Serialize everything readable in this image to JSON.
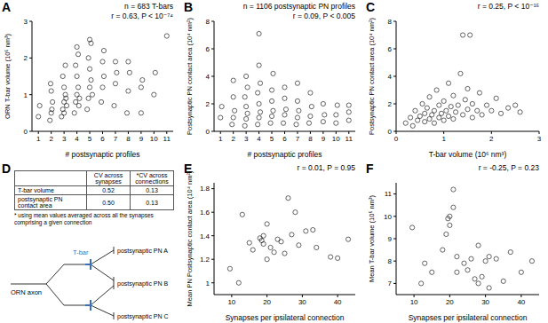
{
  "chart_data": [
    {
      "panel": "A",
      "type": "scatter",
      "annotations": [
        "n = 683 T-bars",
        "r = 0.63, P < 10⁻⁷⁴"
      ],
      "x_label": "# postsynaptic profiles",
      "y_label": "ORN T-bar volume (10⁶ nm³)",
      "color": "#000000",
      "marker": "open_circle",
      "x": [
        1,
        1.1,
        1.9,
        2.0,
        2.1,
        2.0,
        1.95,
        2.05,
        2.8,
        2.9,
        3.0,
        3.1,
        3.2,
        3.0,
        2.9,
        3.1,
        3.0,
        3.15,
        3.8,
        3.9,
        4.0,
        4.1,
        4.2,
        4.0,
        3.9,
        4.1,
        4.0,
        4.15,
        4.8,
        4.9,
        5.0,
        5.1,
        5.0,
        4.9,
        5.1,
        5.0,
        5.2,
        5.9,
        6.0,
        6.1,
        6.0,
        6.1,
        6.9,
        7.0,
        7.1,
        7.0,
        7.9,
        8.0,
        8.1,
        8.0,
        9.0,
        9.0,
        9.1,
        10.0,
        10.1,
        11.0
      ],
      "values": [
        0.4,
        0.7,
        0.3,
        0.5,
        0.8,
        1.1,
        1.3,
        0.6,
        0.4,
        0.6,
        0.8,
        1.0,
        0.7,
        1.2,
        1.5,
        1.8,
        0.5,
        0.9,
        0.5,
        0.8,
        1.0,
        1.2,
        0.9,
        1.5,
        1.8,
        2.1,
        2.3,
        0.7,
        0.6,
        0.9,
        1.2,
        1.4,
        1.7,
        2.0,
        2.4,
        2.5,
        1.0,
        0.8,
        1.2,
        1.5,
        1.9,
        2.2,
        0.7,
        1.3,
        1.6,
        1.9,
        0.5,
        1.1,
        1.6,
        1.9,
        0.5,
        1.2,
        1.4,
        1.0,
        1.6,
        2.6
      ],
      "xlim": [
        0.5,
        11.5
      ],
      "xticks": [
        1,
        2,
        3,
        4,
        5,
        6,
        7,
        8,
        9,
        10,
        11
      ],
      "ylim": [
        0,
        3
      ],
      "yticks": [
        0,
        1,
        2,
        3
      ]
    },
    {
      "panel": "B",
      "type": "scatter",
      "annotations": [
        "n = 1106 postsynaptic PN profiles",
        "r = 0.09, P < 0.005"
      ],
      "x_label": "# postsynaptic profiles",
      "y_label": "Postsynaptic PN contact area (10⁴ nm²)",
      "color": "#000000",
      "marker": "open_circle",
      "x": [
        1,
        1.1,
        1.9,
        2,
        2.1,
        2,
        2,
        2.9,
        3,
        3.1,
        3,
        2.9,
        3.1,
        3,
        3.9,
        4,
        4.1,
        4,
        3.9,
        4.1,
        4,
        4,
        4.9,
        5,
        5.1,
        5,
        5,
        5.1,
        5.9,
        6,
        6.1,
        6,
        6,
        6.9,
        7,
        7.1,
        7,
        7,
        7.9,
        8,
        8.1,
        8,
        9,
        9.1,
        9,
        10,
        10,
        10.1,
        11,
        11,
        11
      ],
      "values": [
        1.0,
        1.8,
        0.5,
        1.0,
        1.5,
        2.5,
        3.7,
        0.4,
        0.9,
        1.3,
        1.8,
        2.5,
        3.2,
        4.0,
        0.5,
        1.0,
        1.4,
        2.0,
        2.8,
        3.5,
        4.8,
        7.1,
        0.6,
        1.1,
        1.5,
        2.2,
        3.0,
        4.2,
        0.6,
        1.2,
        1.6,
        2.4,
        3.2,
        0.5,
        1.0,
        1.5,
        2.2,
        3.5,
        0.6,
        1.1,
        1.8,
        2.8,
        0.7,
        1.2,
        2.0,
        0.6,
        1.2,
        1.9,
        0.8,
        1.4,
        1.9
      ],
      "xlim": [
        0.5,
        11.5
      ],
      "xticks": [
        1,
        2,
        3,
        4,
        5,
        6,
        7,
        8,
        9,
        10,
        11
      ],
      "ylim": [
        0,
        8
      ],
      "yticks": [
        0,
        2,
        4,
        6,
        8
      ]
    },
    {
      "panel": "C",
      "type": "scatter",
      "annotations": [
        "r = 0.25, P < 10⁻¹⁵"
      ],
      "x_label": "T-bar volume (10⁶ nm³)",
      "y_label": "Postsynaptic PN contact area (10⁴ nm²)",
      "color": "#000000",
      "marker": "open_circle",
      "x": [
        0.2,
        0.3,
        0.35,
        0.4,
        0.45,
        0.5,
        0.55,
        0.6,
        0.6,
        0.65,
        0.7,
        0.7,
        0.75,
        0.8,
        0.8,
        0.85,
        0.9,
        0.9,
        0.95,
        1.0,
        1.0,
        1.05,
        1.1,
        1.1,
        1.15,
        1.2,
        1.2,
        1.25,
        1.3,
        1.35,
        1.4,
        1.4,
        1.45,
        1.5,
        1.5,
        1.55,
        1.6,
        1.6,
        1.7,
        1.75,
        1.8,
        1.9,
        2.0,
        2.1,
        2.2,
        2.35,
        2.5,
        2.6
      ],
      "values": [
        0.6,
        1.0,
        0.4,
        1.5,
        0.8,
        1.1,
        2.0,
        0.7,
        1.3,
        1.7,
        0.9,
        2.5,
        1.2,
        0.6,
        1.5,
        3.0,
        1.0,
        1.9,
        1.3,
        0.8,
        2.2,
        1.5,
        1.1,
        3.5,
        1.8,
        0.9,
        2.6,
        1.4,
        1.9,
        4.2,
        1.2,
        7.0,
        2.3,
        1.6,
        3.1,
        7.0,
        1.0,
        2.0,
        1.5,
        2.8,
        1.2,
        1.9,
        1.5,
        2.4,
        1.3,
        1.7,
        1.9,
        1.4
      ],
      "xlim": [
        0,
        3
      ],
      "xticks": [
        0,
        1,
        2,
        3
      ],
      "ylim": [
        0,
        8
      ],
      "yticks": [
        0,
        2,
        4,
        6,
        8
      ]
    },
    {
      "panel": "E",
      "type": "scatter",
      "annotations": [
        "r = 0.01, P = 0.95"
      ],
      "x_label": "Synapses per ipsilateral connection",
      "y_label": "Mean PN Postsynaptic contact area (10⁴ nm²)",
      "color": "#000000",
      "marker": "open_circle",
      "x": [
        9.5,
        12,
        13,
        15,
        16,
        18,
        18.5,
        19,
        19,
        20,
        20,
        21,
        22,
        23,
        24,
        25,
        26,
        27,
        28,
        29,
        31,
        33,
        34,
        38,
        40,
        43
      ],
      "values": [
        1.12,
        1.0,
        1.58,
        1.34,
        1.28,
        1.38,
        1.36,
        1.33,
        1.4,
        1.5,
        1.2,
        1.3,
        1.26,
        1.37,
        1.35,
        1.25,
        1.72,
        1.41,
        1.6,
        1.32,
        1.44,
        1.45,
        1.3,
        1.22,
        1.21,
        1.37
      ],
      "xlim": [
        5,
        45
      ],
      "xticks": [
        10,
        20,
        30,
        40
      ],
      "ylim": [
        0.9,
        1.85
      ],
      "yticks": [
        1,
        1.2,
        1.4,
        1.6,
        1.8
      ]
    },
    {
      "panel": "F",
      "type": "scatter",
      "annotations": [
        "r = -0.25, P = 0.23"
      ],
      "x_label": "Synapses per ipsilateral connection",
      "y_label": "Mean T-bar volume (10⁵ nm³)",
      "color": "#000000",
      "marker": "open_circle",
      "x": [
        9.5,
        12,
        13,
        15,
        18,
        19,
        19.5,
        20,
        20,
        21,
        21,
        22,
        22,
        24,
        25,
        26,
        27,
        28,
        28,
        29,
        30,
        31,
        31,
        33,
        35,
        37,
        40,
        43
      ],
      "values": [
        9.5,
        7.0,
        7.9,
        7.5,
        8.5,
        9.2,
        9.9,
        10.0,
        9.6,
        11.2,
        10.4,
        8.2,
        7.5,
        7.9,
        7.6,
        8.1,
        7.2,
        8.7,
        7.0,
        7.3,
        8.0,
        6.8,
        8.2,
        8.1,
        7.1,
        8.4,
        7.5,
        8.0
      ],
      "xlim": [
        5,
        45
      ],
      "xticks": [
        10,
        20,
        30,
        40
      ],
      "ylim": [
        6.5,
        11.5
      ],
      "yticks": [
        7,
        8,
        9,
        10,
        11
      ]
    }
  ],
  "panel_d": {
    "panel": "D",
    "table": {
      "columns": [
        "CV across synapses",
        "*CV across connections"
      ],
      "rows": [
        {
          "name": "T-bar volume",
          "cells": [
            "0.52",
            "0.13"
          ]
        },
        {
          "name": "postsynaptic PN contact area",
          "cells": [
            "0.50",
            "0.13"
          ]
        }
      ],
      "footnote": "* using mean values averaged across all the synapses comprising a given connection"
    },
    "diagram": {
      "axon_label": "ORN axon",
      "tbar_label": "T-bar",
      "targets": [
        "postsynaptic PN A",
        "postsynaptic PN B",
        "postsynaptic PN C"
      ]
    }
  }
}
